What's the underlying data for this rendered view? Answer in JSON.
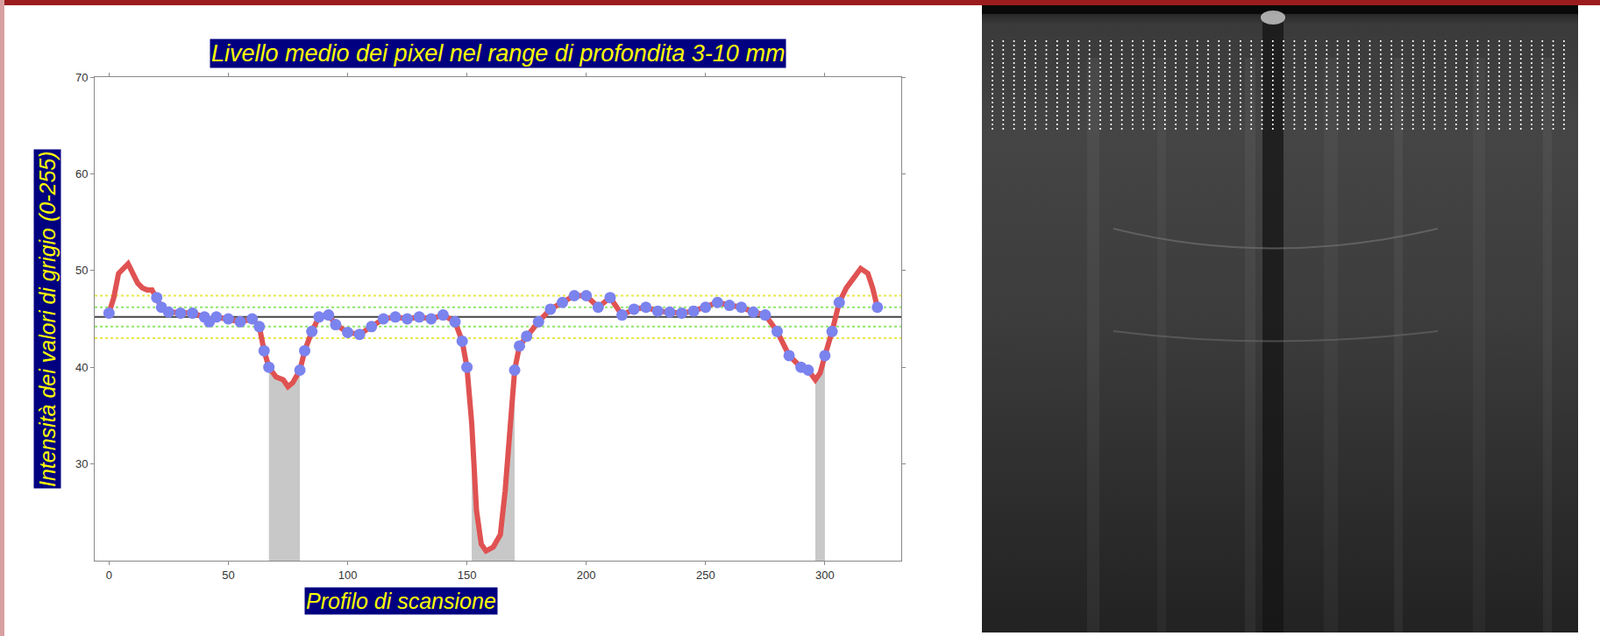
{
  "chart_data": {
    "type": "line",
    "title": "Livello medio dei pixel nel range di profondita 3-10 mm",
    "x_label": "Profilo di scansione",
    "y_label": "Intensità dei valori di grigio (0-255)",
    "x": [
      0,
      2,
      4,
      6,
      8,
      10,
      12,
      14,
      16,
      18,
      20,
      22,
      25,
      30,
      35,
      40,
      42,
      45,
      50,
      55,
      60,
      63,
      65,
      67,
      70,
      73,
      75,
      77,
      80,
      82,
      85,
      88,
      92,
      95,
      100,
      105,
      110,
      115,
      120,
      125,
      130,
      135,
      140,
      145,
      148,
      150,
      152,
      154,
      156,
      158,
      161,
      164,
      166,
      168,
      170,
      172,
      175,
      180,
      185,
      190,
      195,
      200,
      205,
      210,
      215,
      220,
      225,
      230,
      235,
      240,
      245,
      250,
      255,
      260,
      265,
      270,
      275,
      280,
      285,
      290,
      293,
      296,
      298,
      300,
      303,
      306,
      309,
      312,
      315,
      318,
      320,
      322
    ],
    "series": [
      {
        "type": "line",
        "color": "#e05252",
        "line_style": "solid",
        "values": [
          45.6,
          47.2,
          49.7,
          50.2,
          50.7,
          49.7,
          48.7,
          48.2,
          48.0,
          48.0,
          47.2,
          46.2,
          45.7,
          45.6,
          45.6,
          45.2,
          44.7,
          45.2,
          45.0,
          44.7,
          45.0,
          44.2,
          41.7,
          40.0,
          39.0,
          38.7,
          38.0,
          38.4,
          39.7,
          41.7,
          43.7,
          45.2,
          45.4,
          44.4,
          43.6,
          43.4,
          44.2,
          45.0,
          45.2,
          45.0,
          45.2,
          45.0,
          45.4,
          44.7,
          42.7,
          40.0,
          34.2,
          25.2,
          21.7,
          21.0,
          21.4,
          22.7,
          27.2,
          33.2,
          39.7,
          42.2,
          43.2,
          44.7,
          46.0,
          46.7,
          47.4,
          47.4,
          46.2,
          47.2,
          45.4,
          46.0,
          46.2,
          45.8,
          45.7,
          45.6,
          45.8,
          46.2,
          46.7,
          46.4,
          46.2,
          45.7,
          45.4,
          43.7,
          41.2,
          40.0,
          39.7,
          38.7,
          39.4,
          41.2,
          43.7,
          46.7,
          48.2,
          49.2,
          50.2,
          49.7,
          48.2,
          46.2
        ]
      },
      {
        "type": "scatter",
        "color": "#7b83ee",
        "marker": "circle",
        "values": [
          45.6,
          null,
          null,
          null,
          null,
          null,
          null,
          null,
          null,
          null,
          47.2,
          46.2,
          45.7,
          45.6,
          45.6,
          45.2,
          44.7,
          45.2,
          45.0,
          44.7,
          45.0,
          44.2,
          41.7,
          40.0,
          null,
          null,
          null,
          null,
          39.7,
          41.7,
          43.7,
          45.2,
          45.4,
          44.4,
          43.6,
          43.4,
          44.2,
          45.0,
          45.2,
          45.0,
          45.2,
          45.0,
          45.4,
          44.7,
          42.7,
          40.0,
          null,
          null,
          null,
          null,
          null,
          null,
          null,
          null,
          39.7,
          42.2,
          43.2,
          44.7,
          46.0,
          46.7,
          47.4,
          47.4,
          46.2,
          47.2,
          45.4,
          46.0,
          46.2,
          45.8,
          45.7,
          45.6,
          45.8,
          46.2,
          46.7,
          46.4,
          46.2,
          45.7,
          45.4,
          43.7,
          41.2,
          40.0,
          39.7,
          null,
          null,
          41.2,
          43.7,
          46.7,
          null,
          null,
          null,
          null,
          null,
          46.2
        ]
      }
    ],
    "hlines": [
      {
        "value": 47.4,
        "color": "#e8e84a",
        "line_style": "dotted"
      },
      {
        "value": 46.2,
        "color": "#8ee86a",
        "line_style": "dotted"
      },
      {
        "value": 45.2,
        "color": "#444444",
        "line_style": "solid"
      },
      {
        "value": 44.2,
        "color": "#8ee86a",
        "line_style": "dotted"
      },
      {
        "value": 43.0,
        "color": "#e8e84a",
        "line_style": "dotted"
      }
    ],
    "shaded_ranges": [
      [
        67,
        80
      ],
      [
        152,
        170
      ],
      [
        294,
        300
      ]
    ],
    "xlim": [
      -6,
      332
    ],
    "xticks": [
      0,
      50,
      100,
      150,
      200,
      250,
      300
    ],
    "ylim": [
      20,
      70
    ],
    "yticks": [
      30,
      40,
      50,
      60,
      70
    ],
    "grid": false
  }
}
